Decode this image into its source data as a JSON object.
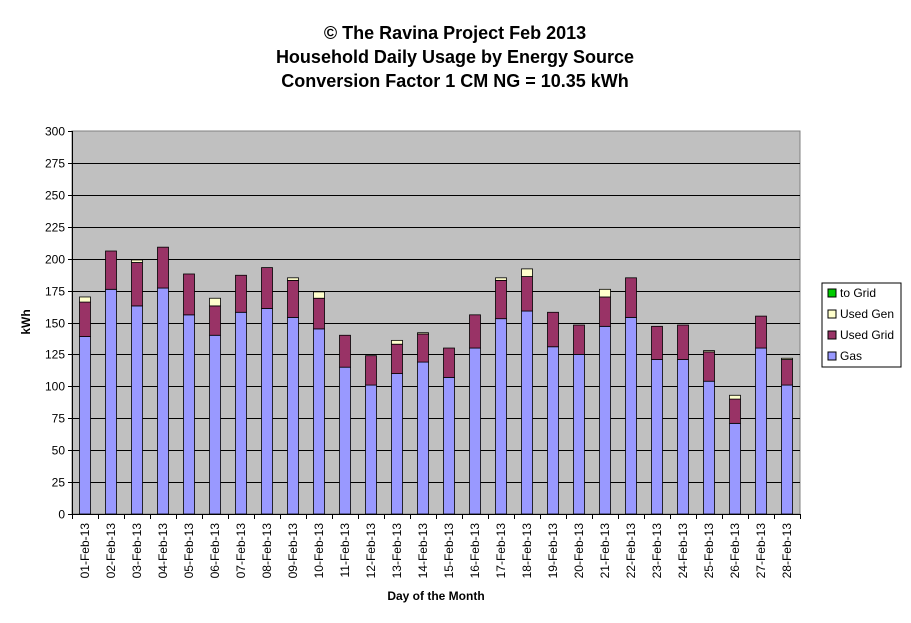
{
  "chart_data": {
    "type": "bar",
    "stacked": true,
    "title_lines": [
      "© The Ravina Project Feb 2013",
      "Household Daily Usage by Energy Source",
      "Conversion Factor 1 CM NG = 10.35 kWh"
    ],
    "xlabel": "Day of the Month",
    "ylabel": "kWh",
    "ylim": [
      0,
      300
    ],
    "yticks": [
      0,
      25,
      50,
      75,
      100,
      125,
      150,
      175,
      200,
      225,
      250,
      275,
      300
    ],
    "grid": true,
    "legend_position": "right",
    "plot_background": "#c0c0c0",
    "categories": [
      "01-Feb-13",
      "02-Feb-13",
      "03-Feb-13",
      "04-Feb-13",
      "05-Feb-13",
      "06-Feb-13",
      "07-Feb-13",
      "08-Feb-13",
      "09-Feb-13",
      "10-Feb-13",
      "11-Feb-13",
      "12-Feb-13",
      "13-Feb-13",
      "14-Feb-13",
      "15-Feb-13",
      "16-Feb-13",
      "17-Feb-13",
      "18-Feb-13",
      "19-Feb-13",
      "20-Feb-13",
      "21-Feb-13",
      "22-Feb-13",
      "23-Feb-13",
      "24-Feb-13",
      "25-Feb-13",
      "26-Feb-13",
      "27-Feb-13",
      "28-Feb-13"
    ],
    "series": [
      {
        "name": "Gas",
        "color": "#9999ff",
        "values": [
          139,
          176,
          163,
          177,
          156,
          140,
          158,
          161,
          154,
          145,
          115,
          101,
          110,
          119,
          107,
          130,
          153,
          159,
          131,
          125,
          147,
          154,
          121,
          121,
          104,
          71,
          130,
          101
        ]
      },
      {
        "name": "Used Grid",
        "color": "#993366",
        "values": [
          27,
          30,
          34,
          32,
          32,
          23,
          29,
          32,
          29,
          24,
          25,
          23,
          23,
          22,
          23,
          26,
          30,
          27,
          27,
          23,
          23,
          31,
          26,
          27,
          23,
          19,
          25,
          20
        ]
      },
      {
        "name": "Used Gen",
        "color": "#ffffcc",
        "values": [
          4,
          0,
          2,
          0,
          0,
          6,
          0,
          0,
          2,
          5,
          0,
          0,
          3,
          1,
          0,
          0,
          2,
          6,
          0,
          0,
          6,
          0,
          0,
          0,
          1,
          3,
          0,
          1
        ]
      },
      {
        "name": "to Grid",
        "color": "#00cc00",
        "values": [
          0,
          0,
          0,
          0,
          0,
          0,
          0,
          0,
          0,
          0,
          0,
          0,
          0,
          0,
          0,
          0,
          0,
          0,
          0,
          0,
          0,
          0,
          0,
          0,
          0,
          0,
          0,
          0
        ]
      }
    ],
    "legend_order": [
      "to Grid",
      "Used Gen",
      "Used Grid",
      "Gas"
    ]
  }
}
